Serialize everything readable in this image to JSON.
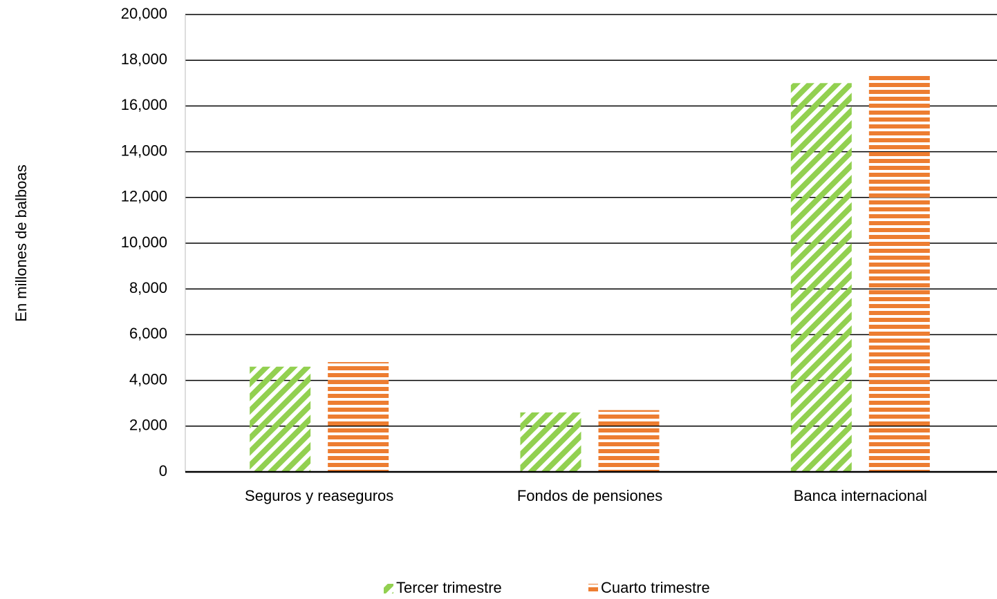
{
  "chart_data": {
    "type": "bar",
    "y_axis_label": "En millones de balboas",
    "categories": [
      "Seguros y reaseguros",
      "Fondos de pensiones",
      "Banca internacional"
    ],
    "series": [
      {
        "name": "Tercer trimestre",
        "color": "#92d050",
        "pattern": "diagonal",
        "values": [
          4600,
          2600,
          17000
        ]
      },
      {
        "name": "Cuarto trimestre",
        "color": "#ed7d31",
        "pattern": "horizontal",
        "values": [
          4800,
          2700,
          17400
        ]
      }
    ],
    "ylim": [
      0,
      20000
    ],
    "yticks": [
      0,
      {
        "value": 2000,
        "label": "2,000"
      },
      {
        "value": 4000,
        "label": "4,000"
      },
      {
        "value": 6000,
        "label": "6,000"
      },
      {
        "value": 8000,
        "label": "8,000"
      },
      {
        "value": 10000,
        "label": "10,000"
      },
      {
        "value": 12000,
        "label": "12,000"
      },
      {
        "value": 14000,
        "label": "14,000"
      },
      {
        "value": 16000,
        "label": "16,000"
      },
      {
        "value": 18000,
        "label": "18,000"
      },
      {
        "value": 20000,
        "label": "20,000"
      }
    ],
    "grid": true,
    "legend": "bottom"
  }
}
